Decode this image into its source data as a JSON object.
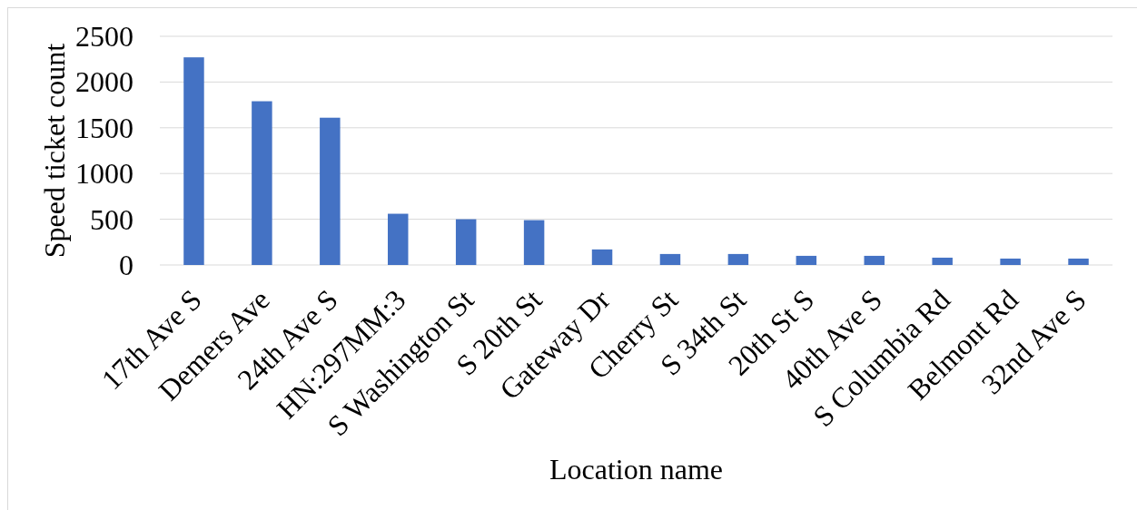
{
  "chart_data": {
    "type": "bar",
    "xlabel": "Location name",
    "ylabel": "Speed ticket count",
    "categories": [
      "17th Ave S",
      "Demers Ave",
      "24th Ave S",
      "HN:297MM:3",
      "S Washington St",
      "S 20th St",
      "Gateway Dr",
      "Cherry St",
      "S 34th St",
      "20th St S",
      "40th Ave S",
      "S Columbia Rd",
      "Belmont Rd",
      "32nd Ave S"
    ],
    "values": [
      2270,
      1790,
      1610,
      560,
      500,
      490,
      170,
      120,
      120,
      100,
      100,
      80,
      70,
      70
    ],
    "color": "#4472c4",
    "ylim": [
      0,
      2500
    ],
    "yticks": [
      0,
      500,
      1000,
      1500,
      2000,
      2500
    ],
    "grid": true
  }
}
